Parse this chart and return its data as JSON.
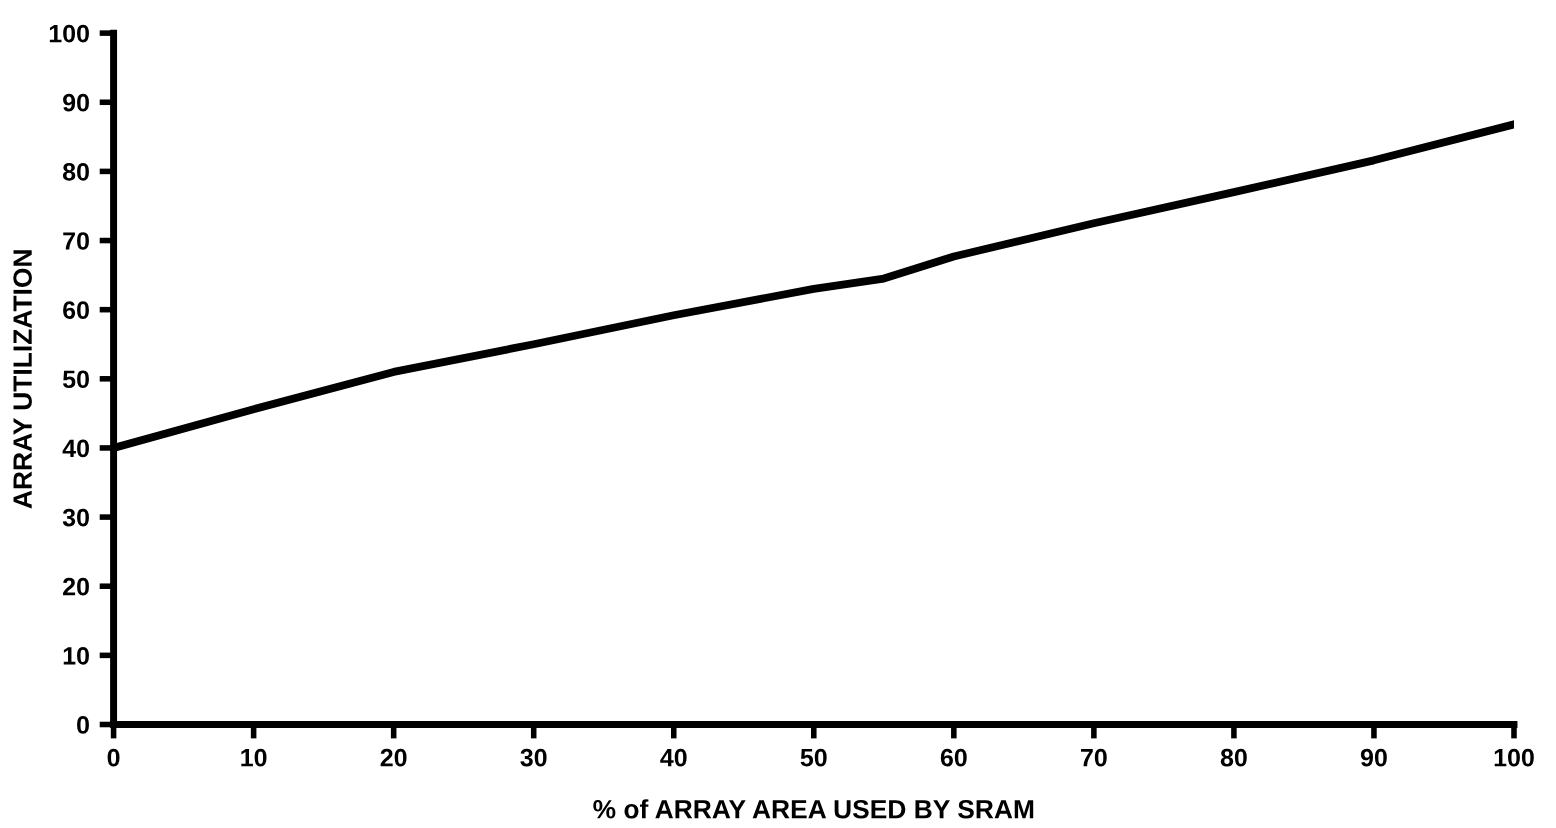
{
  "chart_data": {
    "type": "line",
    "xlabel": "% of ARRAY AREA USED BY SRAM",
    "ylabel": "ARRAY UTILIZATION",
    "x": [
      0,
      10,
      20,
      30,
      40,
      50,
      55,
      60,
      70,
      80,
      90,
      100
    ],
    "series": [
      {
        "color": "#000000",
        "values": [
          40,
          45.6,
          51,
          55,
          59.2,
          63,
          64.5,
          67.7,
          72.5,
          77,
          81.6,
          86.8
        ]
      }
    ],
    "xlim": [
      0,
      100
    ],
    "ylim": [
      0,
      100
    ],
    "xticks": [
      0,
      10,
      20,
      30,
      40,
      50,
      60,
      70,
      80,
      90,
      100
    ],
    "yticks": [
      0,
      10,
      20,
      30,
      40,
      50,
      60,
      70,
      80,
      90,
      100
    ],
    "grid": false,
    "marker": "none",
    "line_style": "solid"
  }
}
